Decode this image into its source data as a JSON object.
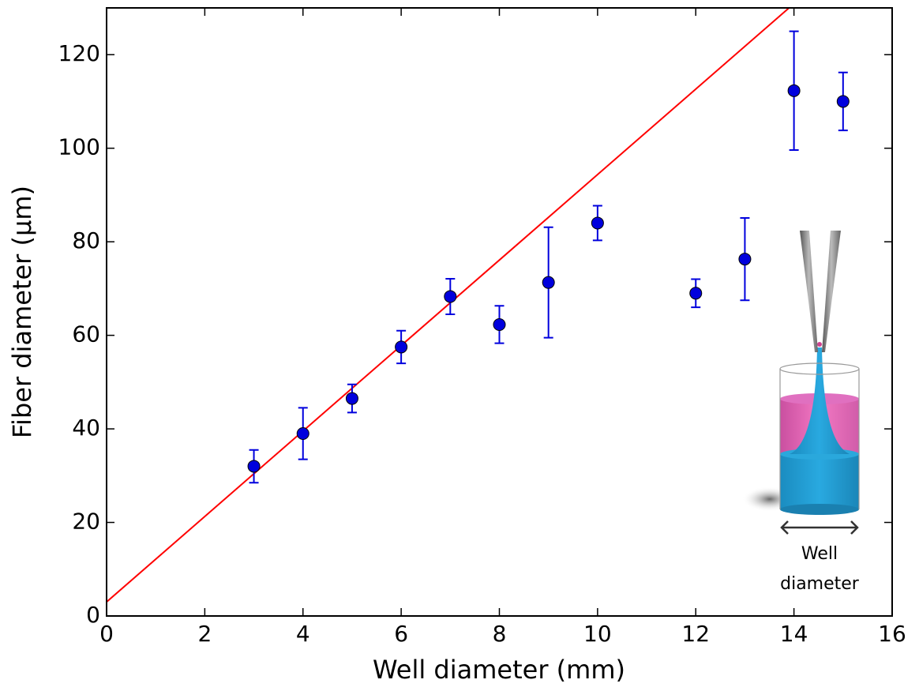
{
  "chart_data": {
    "type": "scatter",
    "x_label": "Well diameter (mm)",
    "y_label": "Fiber diameter (µm)",
    "xlim": [
      0,
      16
    ],
    "ylim": [
      0,
      130
    ],
    "xticks": [
      0,
      2,
      4,
      6,
      8,
      10,
      12,
      14,
      16
    ],
    "yticks": [
      0,
      20,
      40,
      60,
      80,
      100,
      120
    ],
    "points": {
      "color": "#0000dd",
      "x": [
        3,
        4,
        5,
        6,
        7,
        8,
        9,
        10,
        12,
        13,
        14,
        15
      ],
      "values": [
        32,
        39,
        46.5,
        57.5,
        68.3,
        62.3,
        71.3,
        84,
        69,
        76.3,
        112.3,
        110
      ],
      "errors": [
        3.5,
        5.5,
        3,
        3.5,
        3.8,
        4,
        11.8,
        3.7,
        3,
        8.8,
        12.7,
        6.2
      ]
    },
    "fit_line": {
      "color": "#ff0000",
      "x": [
        0,
        13.9
      ],
      "values": [
        3,
        130
      ]
    },
    "annotation": [
      "Well",
      "diameter"
    ]
  }
}
